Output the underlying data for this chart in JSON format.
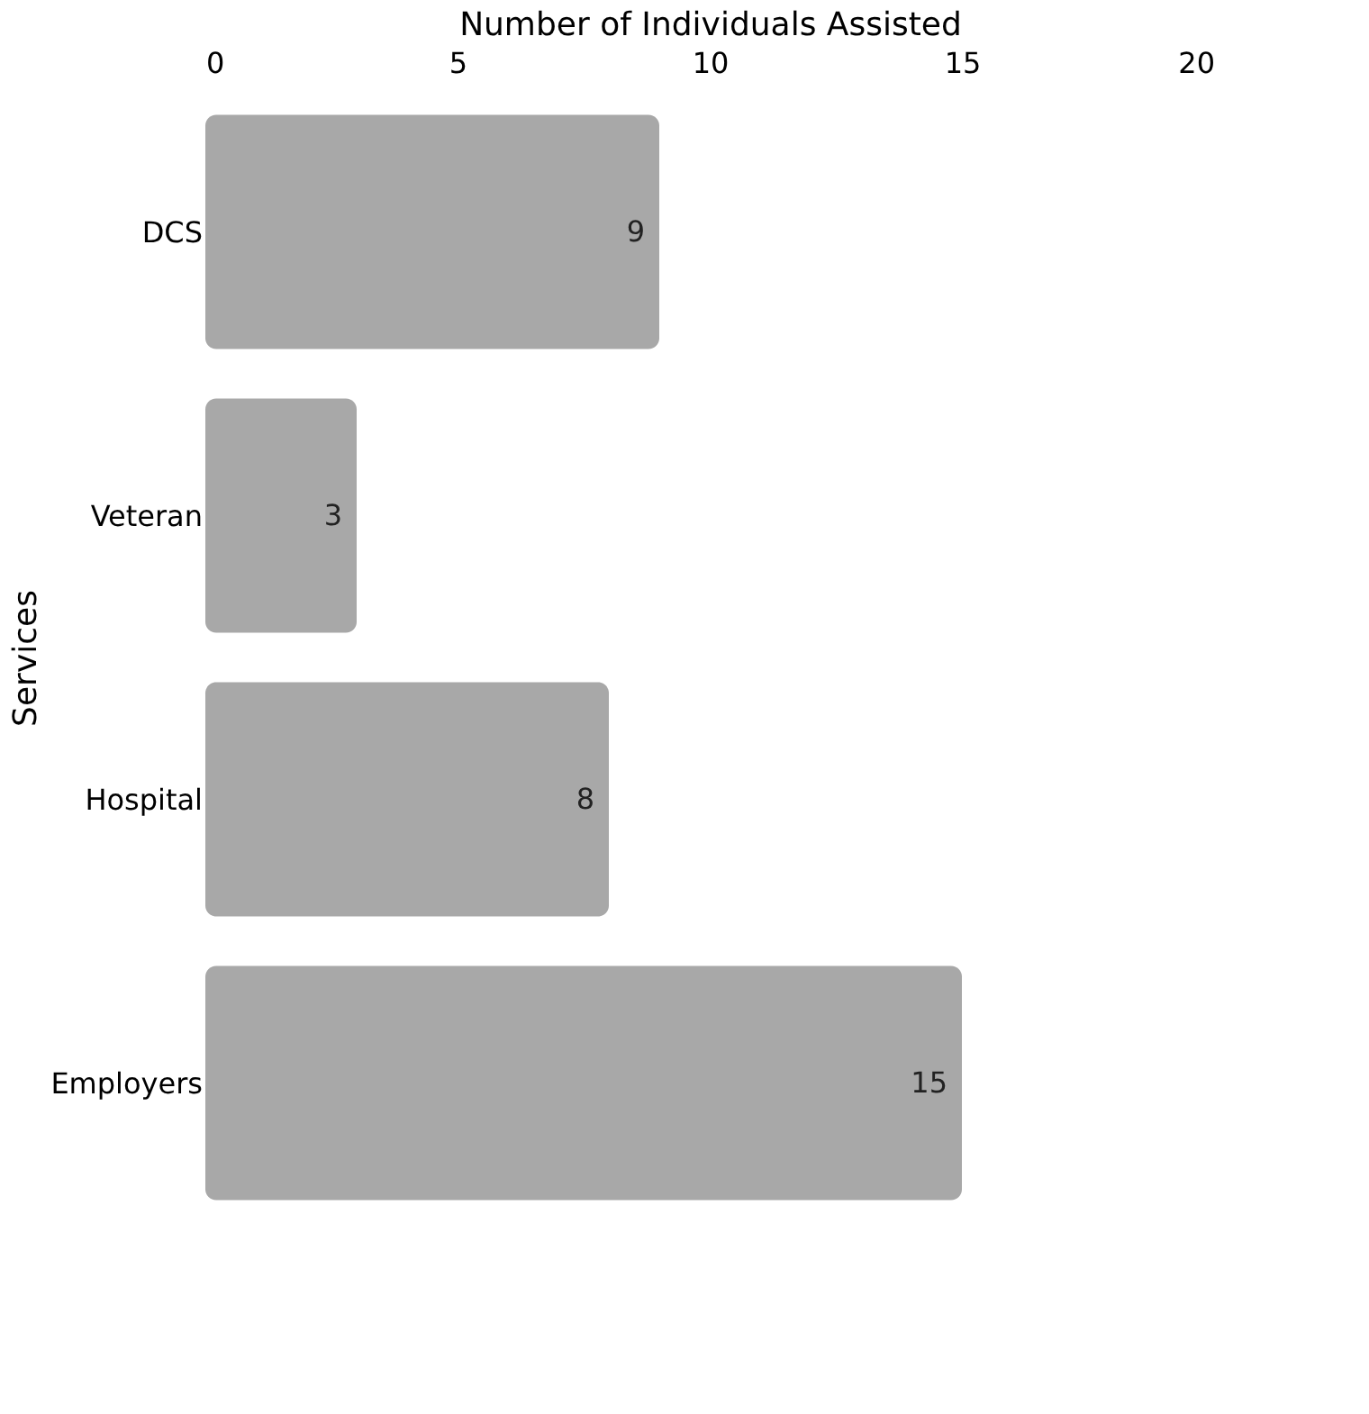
{
  "chart_data": {
    "type": "bar",
    "orientation": "horizontal",
    "xlabel": "Number of Individuals Assisted",
    "ylabel": "Services",
    "categories": [
      "DCS",
      "Veteran",
      "Hospital",
      "Employers"
    ],
    "values": [
      9,
      3,
      8,
      15
    ],
    "color": "#a8a8a8",
    "xlim": [
      0,
      20
    ],
    "xticks": [
      0,
      5,
      10,
      15,
      20
    ],
    "grid": false,
    "data_labels": true
  }
}
